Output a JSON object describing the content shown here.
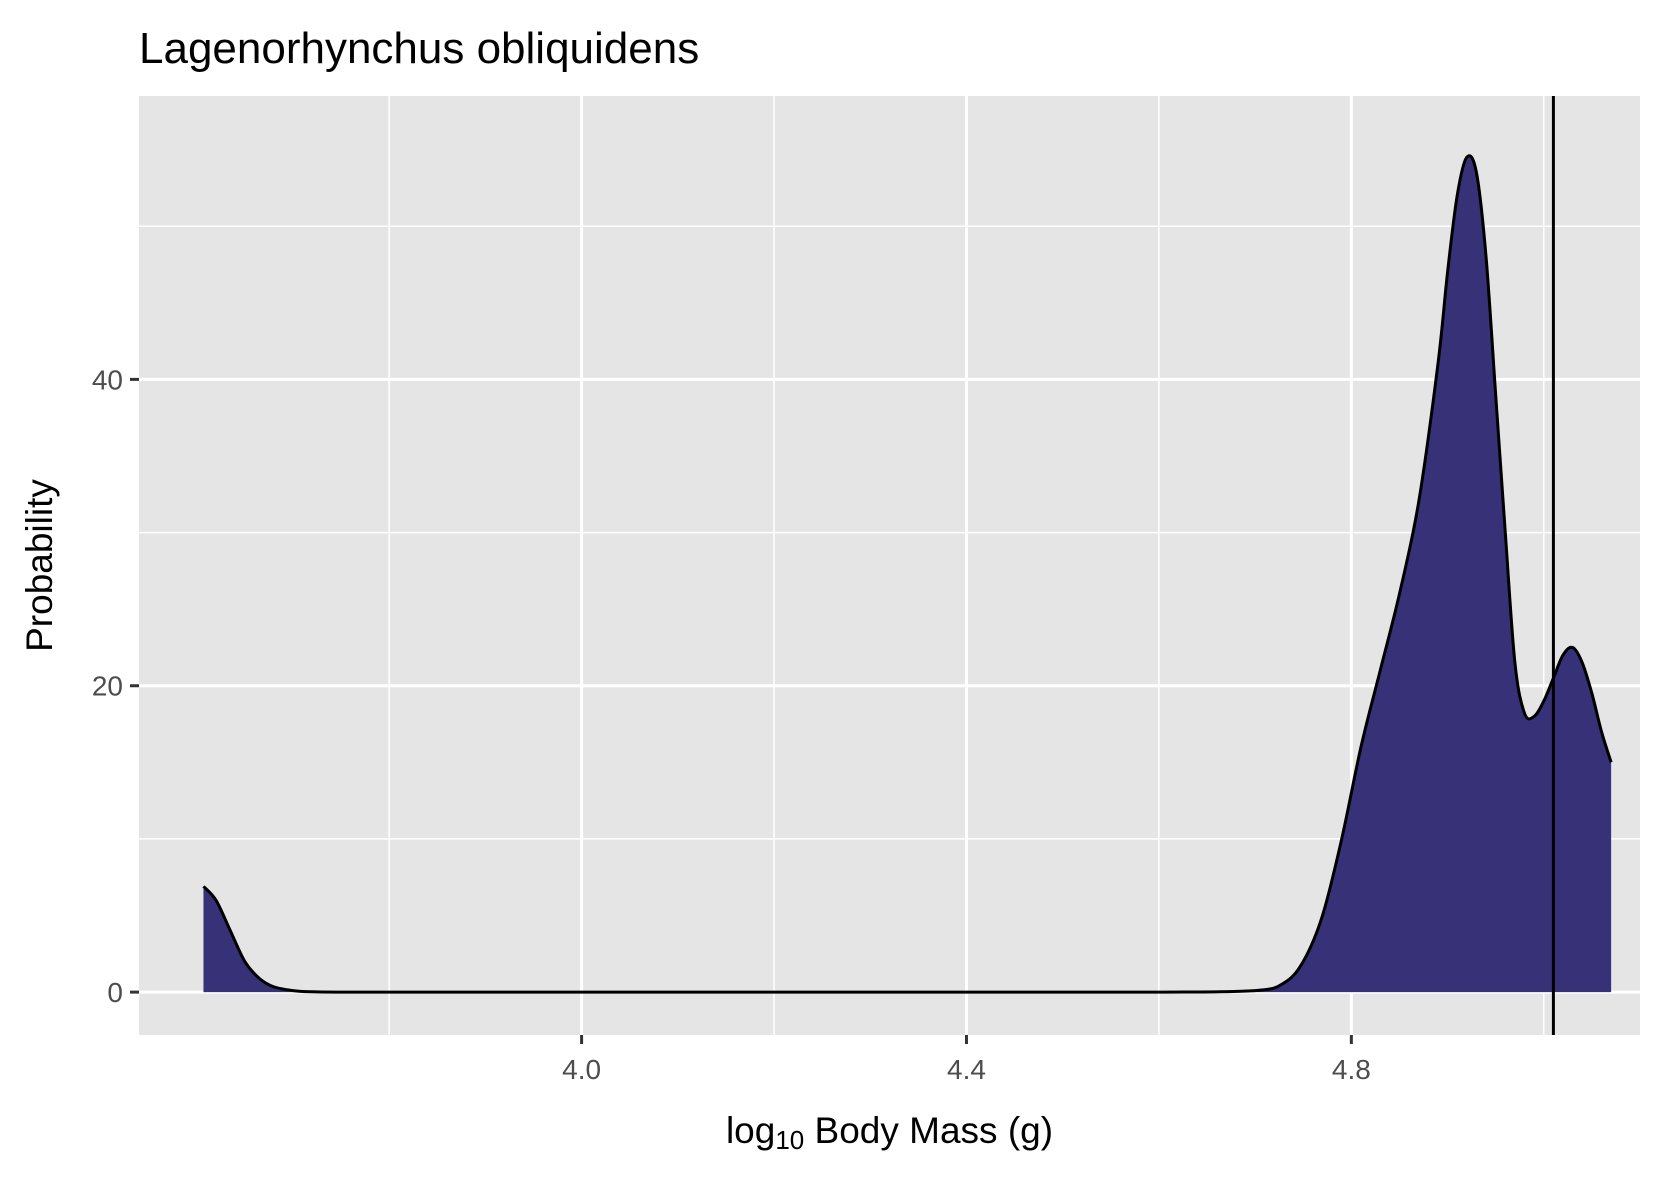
{
  "chart_data": {
    "type": "area",
    "title": "Lagenorhynchus obliquidens",
    "xlabel": {
      "prefix": "log",
      "subscript": "10",
      "suffix": " Body Mass (g)"
    },
    "ylabel": "Probability",
    "xlim": [
      3.54,
      5.1
    ],
    "ylim": [
      -2.8,
      58.5
    ],
    "x_ticks": [
      4.0,
      4.4,
      4.8
    ],
    "x_tick_labels": [
      "4.0",
      "4.4",
      "4.8"
    ],
    "y_ticks": [
      0,
      20,
      40
    ],
    "y_tick_labels": [
      "0",
      "20",
      "40"
    ],
    "grid": true,
    "fill_color": "#373177",
    "line_color": "#000000",
    "panel_background": "#e5e5e5",
    "vline_x": 5.01,
    "density": {
      "x": [
        3.607,
        3.62,
        3.635,
        3.65,
        3.665,
        3.68,
        3.7,
        3.72,
        3.75,
        3.8,
        4.0,
        4.2,
        4.4,
        4.6,
        4.7,
        4.73,
        4.75,
        4.77,
        4.79,
        4.81,
        4.83,
        4.85,
        4.87,
        4.89,
        4.9,
        4.91,
        4.92,
        4.93,
        4.94,
        4.95,
        4.96,
        4.97,
        4.98,
        4.99,
        5.0,
        5.01,
        5.02,
        5.03,
        5.04,
        5.05,
        5.06,
        5.07
      ],
      "y": [
        6.9,
        6.0,
        4.0,
        2.0,
        0.9,
        0.35,
        0.1,
        0.02,
        0.0,
        0.0,
        0.0,
        0.0,
        0.0,
        0.0,
        0.1,
        0.6,
        2.0,
        5.0,
        10.0,
        16.0,
        21.0,
        26.0,
        32.0,
        41.0,
        47.0,
        52.0,
        54.5,
        53.5,
        48.0,
        39.0,
        30.0,
        21.5,
        18.2,
        18.0,
        19.0,
        20.5,
        22.0,
        22.5,
        21.5,
        19.5,
        17.0,
        15.0
      ]
    }
  }
}
